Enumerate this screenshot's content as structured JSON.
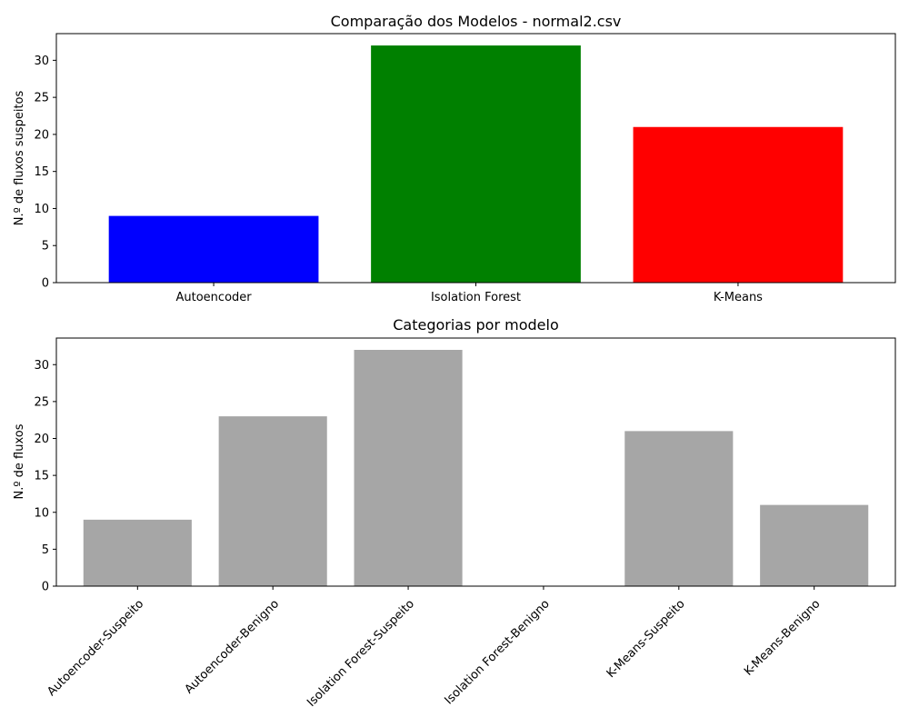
{
  "chart_data": [
    {
      "type": "bar",
      "title": "Comparação dos Modelos - normal2.csv",
      "xlabel": "",
      "ylabel": "N.º de fluxos suspeitos",
      "categories": [
        "Autoencoder",
        "Isolation Forest",
        "K-Means"
      ],
      "values": [
        9,
        32,
        21
      ],
      "colors": [
        "#0000ff",
        "#008000",
        "#ff0000"
      ],
      "ylim": [
        0,
        33.6
      ],
      "yticks": [
        0,
        5,
        10,
        15,
        20,
        25,
        30
      ],
      "grid": false
    },
    {
      "type": "bar",
      "title": "Categorias por modelo",
      "xlabel": "",
      "ylabel": "N.º de fluxos",
      "categories": [
        "Autoencoder-Suspeito",
        "Autoencoder-Benigno",
        "Isolation Forest-Suspeito",
        "Isolation Forest-Benigno",
        "K-Means-Suspeito",
        "K-Means-Benigno"
      ],
      "values": [
        9,
        23,
        32,
        0,
        21,
        11
      ],
      "colors": [
        "#a6a6a6",
        "#a6a6a6",
        "#a6a6a6",
        "#a6a6a6",
        "#a6a6a6",
        "#a6a6a6"
      ],
      "ylim": [
        0,
        33.6
      ],
      "yticks": [
        0,
        5,
        10,
        15,
        20,
        25,
        30
      ],
      "tick_label_rotation": 45,
      "grid": false
    }
  ]
}
